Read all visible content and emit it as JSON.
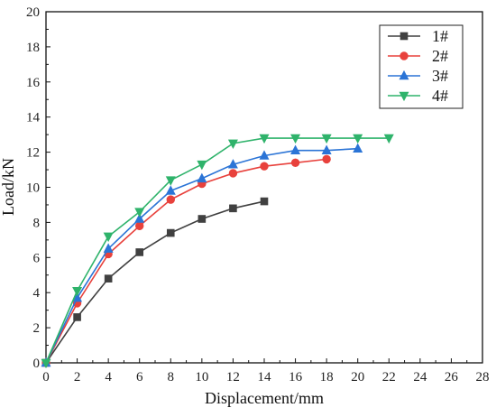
{
  "chart_data": {
    "type": "line",
    "xlabel": "Displacement/mm",
    "ylabel": "Load/kN",
    "xlim": [
      0,
      28
    ],
    "ylim": [
      0,
      20
    ],
    "xticks": [
      "0",
      "2",
      "4",
      "6",
      "8",
      "10",
      "12",
      "14",
      "16",
      "18",
      "20",
      "22",
      "24",
      "26",
      "28"
    ],
    "yticks": [
      "0",
      "2",
      "4",
      "6",
      "8",
      "10",
      "12",
      "14",
      "16",
      "18",
      "20"
    ],
    "grid": false,
    "legend_position": "top-right",
    "series": [
      {
        "name": "1#",
        "color": "#404040",
        "marker": "square",
        "x": [
          0,
          2,
          4,
          6,
          8,
          10,
          12,
          14
        ],
        "y": [
          0,
          2.6,
          4.8,
          6.3,
          7.4,
          8.2,
          8.8,
          9.2
        ]
      },
      {
        "name": "2#",
        "color": "#e8413c",
        "marker": "circle",
        "x": [
          0,
          2,
          4,
          6,
          8,
          10,
          12,
          14,
          16,
          18
        ],
        "y": [
          0,
          3.4,
          6.2,
          7.8,
          9.3,
          10.2,
          10.8,
          11.2,
          11.4,
          11.6
        ]
      },
      {
        "name": "3#",
        "color": "#2b74d6",
        "marker": "triangle-up",
        "x": [
          0,
          2,
          4,
          6,
          8,
          10,
          12,
          14,
          16,
          18,
          20
        ],
        "y": [
          0,
          3.7,
          6.5,
          8.2,
          9.8,
          10.5,
          11.3,
          11.8,
          12.1,
          12.1,
          12.2
        ]
      },
      {
        "name": "4#",
        "color": "#2fb36b",
        "marker": "triangle-down",
        "x": [
          0,
          2,
          4,
          6,
          8,
          10,
          12,
          14,
          16,
          18,
          20,
          22
        ],
        "y": [
          0,
          4.1,
          7.2,
          8.6,
          10.4,
          11.3,
          12.5,
          12.8,
          12.8,
          12.8,
          12.8,
          12.8
        ]
      }
    ]
  }
}
